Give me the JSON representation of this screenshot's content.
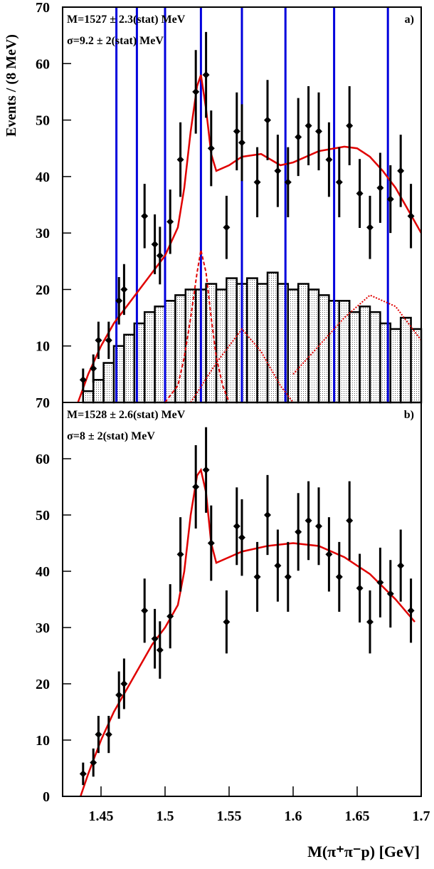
{
  "chart_data": [
    {
      "type": "scatter",
      "y_label": "Events / (8 MeV)",
      "annotations": [
        "M=1527 ± 2.3(stat) MeV",
        "σ=9.2 ± 2(stat) MeV",
        "a)"
      ],
      "xlim": [
        1.42,
        1.7
      ],
      "ylim": [
        0,
        70
      ],
      "yticks": [
        10,
        20,
        30,
        40,
        50,
        60,
        70
      ],
      "x": [
        1.436,
        1.444,
        1.448,
        1.456,
        1.464,
        1.468,
        1.484,
        1.492,
        1.496,
        1.504,
        1.512,
        1.524,
        1.532,
        1.536,
        1.548,
        1.556,
        1.56,
        1.572,
        1.58,
        1.588,
        1.596,
        1.604,
        1.612,
        1.62,
        1.628,
        1.636,
        1.644,
        1.652,
        1.66,
        1.668,
        1.676,
        1.684,
        1.692
      ],
      "values": [
        4,
        6,
        11,
        11,
        18,
        20,
        33,
        28,
        26,
        32,
        43,
        55,
        58,
        45,
        31,
        48,
        46,
        39,
        50,
        41,
        39,
        47,
        49,
        48,
        43,
        39,
        49,
        37,
        31,
        38,
        36,
        41,
        33
      ],
      "errors": [
        2,
        2.5,
        3.3,
        3.3,
        4.2,
        4.5,
        5.7,
        5.3,
        5.1,
        5.7,
        6.6,
        7.4,
        7.6,
        6.7,
        5.6,
        6.9,
        6.8,
        6.2,
        7.1,
        6.4,
        6.2,
        6.9,
        7,
        6.9,
        6.6,
        6.2,
        7,
        6.1,
        5.6,
        6.2,
        6,
        6.4,
        5.7
      ],
      "color": "#000000",
      "histogram": {
        "color": "#000000",
        "bins": [
          1.42,
          1.428,
          1.436,
          1.444,
          1.452,
          1.46,
          1.468,
          1.476,
          1.484,
          1.492,
          1.5,
          1.508,
          1.516,
          1.524,
          1.532,
          1.54,
          1.548,
          1.556,
          1.564,
          1.572,
          1.58,
          1.588,
          1.596,
          1.604,
          1.612,
          1.62,
          1.628,
          1.636,
          1.644,
          1.652,
          1.66,
          1.668,
          1.676,
          1.684,
          1.692,
          1.7
        ],
        "counts": [
          0,
          0,
          2,
          4,
          7,
          10,
          12,
          14,
          16,
          17,
          18,
          19,
          20,
          20,
          21,
          20,
          22,
          21,
          22,
          21,
          23,
          21,
          20,
          21,
          20,
          19,
          18,
          18,
          16,
          17,
          16,
          14,
          13,
          15,
          13
        ]
      },
      "vlines": {
        "color": "#0000dd",
        "x": [
          1.462,
          1.478,
          1.5,
          1.528,
          1.56,
          1.594,
          1.632,
          1.674
        ]
      },
      "curves": [
        {
          "style": "solid",
          "color": "#e00000",
          "x": [
            1.432,
            1.44,
            1.45,
            1.46,
            1.47,
            1.48,
            1.49,
            1.5,
            1.51,
            1.515,
            1.52,
            1.525,
            1.528,
            1.532,
            1.536,
            1.54,
            1.55,
            1.56,
            1.575,
            1.59,
            1.6,
            1.62,
            1.64,
            1.65,
            1.66,
            1.67,
            1.68,
            1.69,
            1.7
          ],
          "values": [
            0,
            5,
            10,
            14,
            17,
            20,
            23,
            26,
            31,
            38,
            48,
            56,
            58,
            52,
            44,
            41,
            42,
            43.5,
            44,
            42,
            42.5,
            44.5,
            45.3,
            45,
            43.5,
            41,
            38,
            34,
            30
          ]
        },
        {
          "style": "dashed",
          "color": "#e00000",
          "x": [
            1.5,
            1.51,
            1.515,
            1.52,
            1.525,
            1.528,
            1.532,
            1.536,
            1.54,
            1.545,
            1.55
          ],
          "values": [
            0,
            3,
            8,
            15,
            23,
            27,
            23,
            15,
            8,
            3,
            0
          ]
        },
        {
          "style": "dotted",
          "color": "#e00000",
          "x": [
            1.52,
            1.54,
            1.56,
            1.575,
            1.59,
            1.6
          ],
          "values": [
            0,
            7,
            13,
            9,
            3,
            0
          ]
        },
        {
          "style": "dotted",
          "color": "#e00000",
          "x": [
            1.6,
            1.62,
            1.64,
            1.66,
            1.68,
            1.7
          ],
          "values": [
            5,
            10,
            15,
            19,
            17,
            11
          ]
        }
      ]
    },
    {
      "type": "scatter",
      "x_label": "M(π⁺π⁻p) [GeV]",
      "annotations": [
        "M=1528 ± 2.6(stat) MeV",
        "σ=8 ± 2(stat) MeV",
        "b)"
      ],
      "xlim": [
        1.42,
        1.7
      ],
      "ylim": [
        0,
        70
      ],
      "yticks": [
        0,
        10,
        20,
        30,
        40,
        50,
        60,
        70
      ],
      "xticks": [
        1.45,
        1.5,
        1.55,
        1.6,
        1.65,
        1.7
      ],
      "x": [
        1.436,
        1.444,
        1.448,
        1.456,
        1.464,
        1.468,
        1.484,
        1.492,
        1.496,
        1.504,
        1.512,
        1.524,
        1.532,
        1.536,
        1.548,
        1.556,
        1.56,
        1.572,
        1.58,
        1.588,
        1.596,
        1.604,
        1.612,
        1.62,
        1.628,
        1.636,
        1.644,
        1.652,
        1.66,
        1.668,
        1.676,
        1.684,
        1.692
      ],
      "values": [
        4,
        6,
        11,
        11,
        18,
        20,
        33,
        28,
        26,
        32,
        43,
        55,
        58,
        45,
        31,
        48,
        46,
        39,
        50,
        41,
        39,
        47,
        49,
        48,
        43,
        39,
        49,
        37,
        31,
        38,
        36,
        41,
        33
      ],
      "errors": [
        2,
        2.5,
        3.3,
        3.3,
        4.2,
        4.5,
        5.7,
        5.3,
        5.1,
        5.7,
        6.6,
        7.4,
        7.6,
        6.7,
        5.6,
        6.9,
        6.8,
        6.2,
        7.1,
        6.4,
        6.2,
        6.9,
        7,
        6.9,
        6.6,
        6.2,
        7,
        6.1,
        5.6,
        6.2,
        6,
        6.4,
        5.7
      ],
      "color": "#000000",
      "curves": [
        {
          "style": "solid",
          "color": "#e00000",
          "x": [
            1.434,
            1.44,
            1.45,
            1.46,
            1.47,
            1.48,
            1.49,
            1.5,
            1.51,
            1.515,
            1.52,
            1.525,
            1.528,
            1.532,
            1.536,
            1.54,
            1.55,
            1.56,
            1.58,
            1.6,
            1.62,
            1.64,
            1.66,
            1.68,
            1.695
          ],
          "values": [
            0,
            4,
            10,
            15,
            19,
            23,
            27,
            30,
            34,
            40,
            50,
            57,
            58,
            54,
            45,
            41.5,
            42.5,
            43.5,
            44.5,
            45,
            44.5,
            42.5,
            39.5,
            35,
            31
          ]
        }
      ]
    }
  ]
}
